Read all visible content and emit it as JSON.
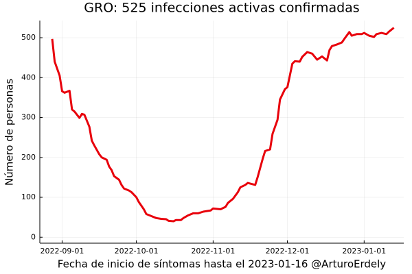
{
  "chart_data": {
    "type": "line",
    "title": "GRO: 525 infecciones activas confirmadas",
    "xlabel": "Fecha de inicio de síntomas hasta el 2023-01-16 @ArturoErdely",
    "ylabel": "Número de personas",
    "x": [
      "2022-08-28",
      "2022-08-29",
      "2022-08-31",
      "2022-09-01",
      "2022-09-02",
      "2022-09-04",
      "2022-09-05",
      "2022-09-06",
      "2022-09-08",
      "2022-09-09",
      "2022-09-10",
      "2022-09-12",
      "2022-09-13",
      "2022-09-14",
      "2022-09-16",
      "2022-09-17",
      "2022-09-19",
      "2022-09-20",
      "2022-09-21",
      "2022-09-22",
      "2022-09-24",
      "2022-09-25",
      "2022-09-26",
      "2022-09-28",
      "2022-09-29",
      "2022-10-01",
      "2022-10-02",
      "2022-10-04",
      "2022-10-05",
      "2022-10-07",
      "2022-10-09",
      "2022-10-11",
      "2022-10-13",
      "2022-10-14",
      "2022-10-16",
      "2022-10-17",
      "2022-10-19",
      "2022-10-20",
      "2022-10-22",
      "2022-10-24",
      "2022-10-26",
      "2022-10-28",
      "2022-10-31",
      "2022-11-01",
      "2022-11-04",
      "2022-11-06",
      "2022-11-07",
      "2022-11-09",
      "2022-11-11",
      "2022-11-12",
      "2022-11-14",
      "2022-11-15",
      "2022-11-18",
      "2022-11-19",
      "2022-11-21",
      "2022-11-22",
      "2022-11-24",
      "2022-11-25",
      "2022-11-27",
      "2022-11-28",
      "2022-11-30",
      "2022-12-01",
      "2022-12-03",
      "2022-12-04",
      "2022-12-06",
      "2022-12-07",
      "2022-12-09",
      "2022-12-11",
      "2022-12-13",
      "2022-12-15",
      "2022-12-17",
      "2022-12-18",
      "2022-12-19",
      "2022-12-21",
      "2022-12-23",
      "2022-12-24",
      "2022-12-26",
      "2022-12-27",
      "2022-12-29",
      "2022-12-31",
      "2023-01-01",
      "2023-01-03",
      "2023-01-05",
      "2023-01-06",
      "2023-01-08",
      "2023-01-10",
      "2023-01-11",
      "2023-01-13"
    ],
    "series": [
      {
        "name": "GRO",
        "color": "#e8000b",
        "values": [
          497,
          440,
          405,
          366,
          362,
          367,
          320,
          315,
          299,
          309,
          307,
          277,
          242,
          230,
          208,
          200,
          194,
          177,
          168,
          153,
          144,
          131,
          122,
          117,
          113,
          100,
          88,
          70,
          58,
          53,
          48,
          46,
          45,
          41,
          40,
          43,
          43,
          48,
          55,
          60,
          60,
          64,
          67,
          72,
          70,
          76,
          86,
          96,
          113,
          125,
          131,
          136,
          131,
          151,
          196,
          216,
          220,
          259,
          294,
          345,
          371,
          376,
          435,
          441,
          440,
          452,
          464,
          460,
          445,
          453,
          443,
          469,
          479,
          483,
          488,
          497,
          514,
          505,
          509,
          509,
          512,
          505,
          502,
          509,
          512,
          509,
          515,
          525
        ]
      }
    ],
    "xlim": [
      "2022-08-23",
      "2023-01-17"
    ],
    "xticks": [
      "2022-09-01",
      "2022-10-01",
      "2022-11-01",
      "2022-12-01",
      "2023-01-01"
    ],
    "ylim": [
      -15,
      543
    ],
    "yticks": [
      0,
      100,
      200,
      300,
      400,
      500
    ],
    "grid": true
  }
}
